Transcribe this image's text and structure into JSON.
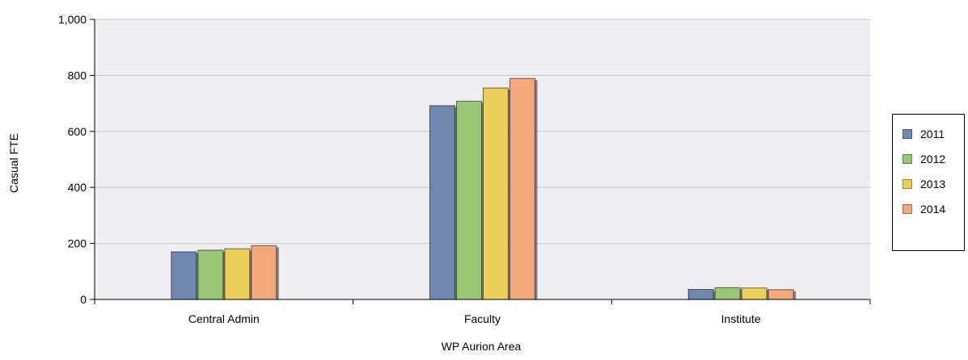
{
  "chart_data": {
    "type": "bar",
    "title": "",
    "xlabel": "WP Aurion Area",
    "ylabel": "Casual FTE",
    "categories": [
      "Central Admin",
      "Faculty",
      "Institute"
    ],
    "series": [
      {
        "name": "2011",
        "color": "#7088b0",
        "values": [
          170,
          692,
          36
        ]
      },
      {
        "name": "2012",
        "color": "#98c774",
        "values": [
          176,
          708,
          42
        ]
      },
      {
        "name": "2013",
        "color": "#ebcf5a",
        "values": [
          181,
          755,
          41
        ]
      },
      {
        "name": "2014",
        "color": "#f5a77a",
        "values": [
          192,
          789,
          35
        ]
      }
    ],
    "ylim": [
      0,
      1000
    ],
    "yticks": [
      0,
      200,
      400,
      600,
      800,
      1000
    ],
    "ytick_labels": [
      "0",
      "200",
      "400",
      "600",
      "800",
      "1,000"
    ],
    "grid": true,
    "legend_position": "right",
    "plot_background": "#ededf2"
  }
}
